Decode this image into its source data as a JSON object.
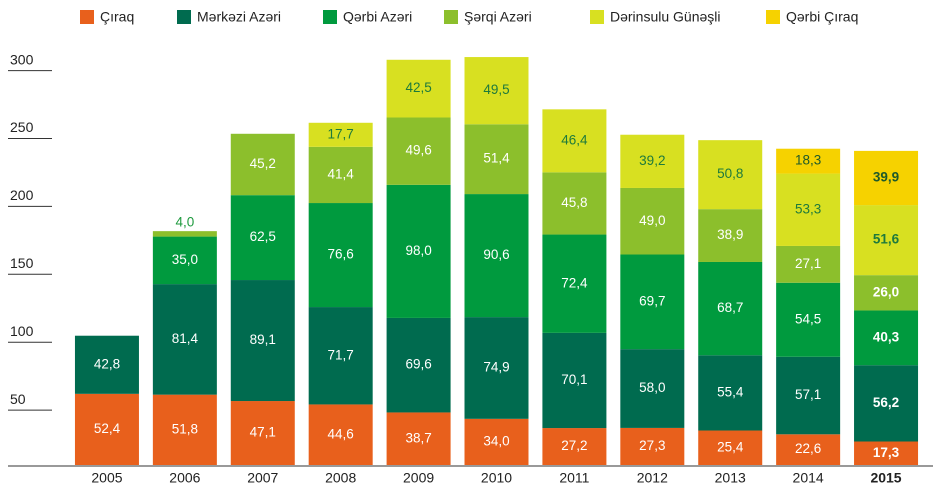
{
  "chart_data": {
    "type": "stacked_bar",
    "categories": [
      "2005",
      "2006",
      "2007",
      "2008",
      "2009",
      "2010",
      "2011",
      "2012",
      "2013",
      "2014",
      "2015"
    ],
    "series": [
      {
        "name": "Çıraq",
        "color": "#e8601c",
        "values": [
          52.4,
          51.8,
          47.1,
          44.6,
          38.7,
          34.0,
          27.2,
          27.3,
          25.4,
          22.6,
          17.3
        ],
        "value_labels": [
          "52,4",
          "51,8",
          "47,1",
          "44,6",
          "38,7",
          "34,0",
          "27,2",
          "27,3",
          "25,4",
          "22,6",
          "17,3"
        ]
      },
      {
        "name": "Mərkəzi Azəri",
        "color": "#006b4f",
        "values": [
          42.8,
          81.4,
          89.1,
          71.7,
          69.6,
          74.9,
          70.1,
          58.0,
          55.4,
          57.1,
          56.2
        ],
        "value_labels": [
          "42,8",
          "81,4",
          "89,1",
          "71,7",
          "69,6",
          "74,9",
          "70,1",
          "58,0",
          "55,4",
          "57,1",
          "56,2"
        ]
      },
      {
        "name": "Qərbi Azəri",
        "color": "#009a3e",
        "values": [
          null,
          35.0,
          62.5,
          76.6,
          98.0,
          90.6,
          72.4,
          69.7,
          68.7,
          54.5,
          40.3
        ],
        "value_labels": [
          null,
          "35,0",
          "62,5",
          "76,6",
          "98,0",
          "90,6",
          "72,4",
          "69,7",
          "68,7",
          "54,5",
          "40,3"
        ]
      },
      {
        "name": "Şərqi Azəri",
        "color": "#8cbf2c",
        "values": [
          null,
          4.0,
          45.2,
          41.4,
          49.6,
          51.4,
          45.8,
          49.0,
          38.9,
          27.1,
          26.0
        ],
        "value_labels": [
          null,
          "4,0",
          "45,2",
          "41,4",
          "49,6",
          "51,4",
          "45,8",
          "49,0",
          "38,9",
          "27,1",
          "26,0"
        ]
      },
      {
        "name": "Dərinsulu Günəşli",
        "color": "#d8e021",
        "values": [
          null,
          null,
          null,
          17.7,
          42.5,
          49.5,
          46.4,
          39.2,
          50.8,
          53.3,
          51.6
        ],
        "value_labels": [
          null,
          null,
          null,
          "17,7",
          "42,5",
          "49,5",
          "46,4",
          "39,2",
          "50,8",
          "53,3",
          "51,6"
        ]
      },
      {
        "name": "Qərbi Çıraq",
        "color": "#f6d200",
        "values": [
          null,
          null,
          null,
          null,
          null,
          null,
          null,
          null,
          null,
          18.3,
          39.9
        ],
        "value_labels": [
          null,
          null,
          null,
          null,
          null,
          null,
          null,
          null,
          null,
          "18,3",
          "39,9"
        ]
      }
    ],
    "ylim": [
      0,
      300
    ],
    "yticks": [
      50,
      100,
      150,
      200,
      250,
      300
    ],
    "legend": "top"
  }
}
